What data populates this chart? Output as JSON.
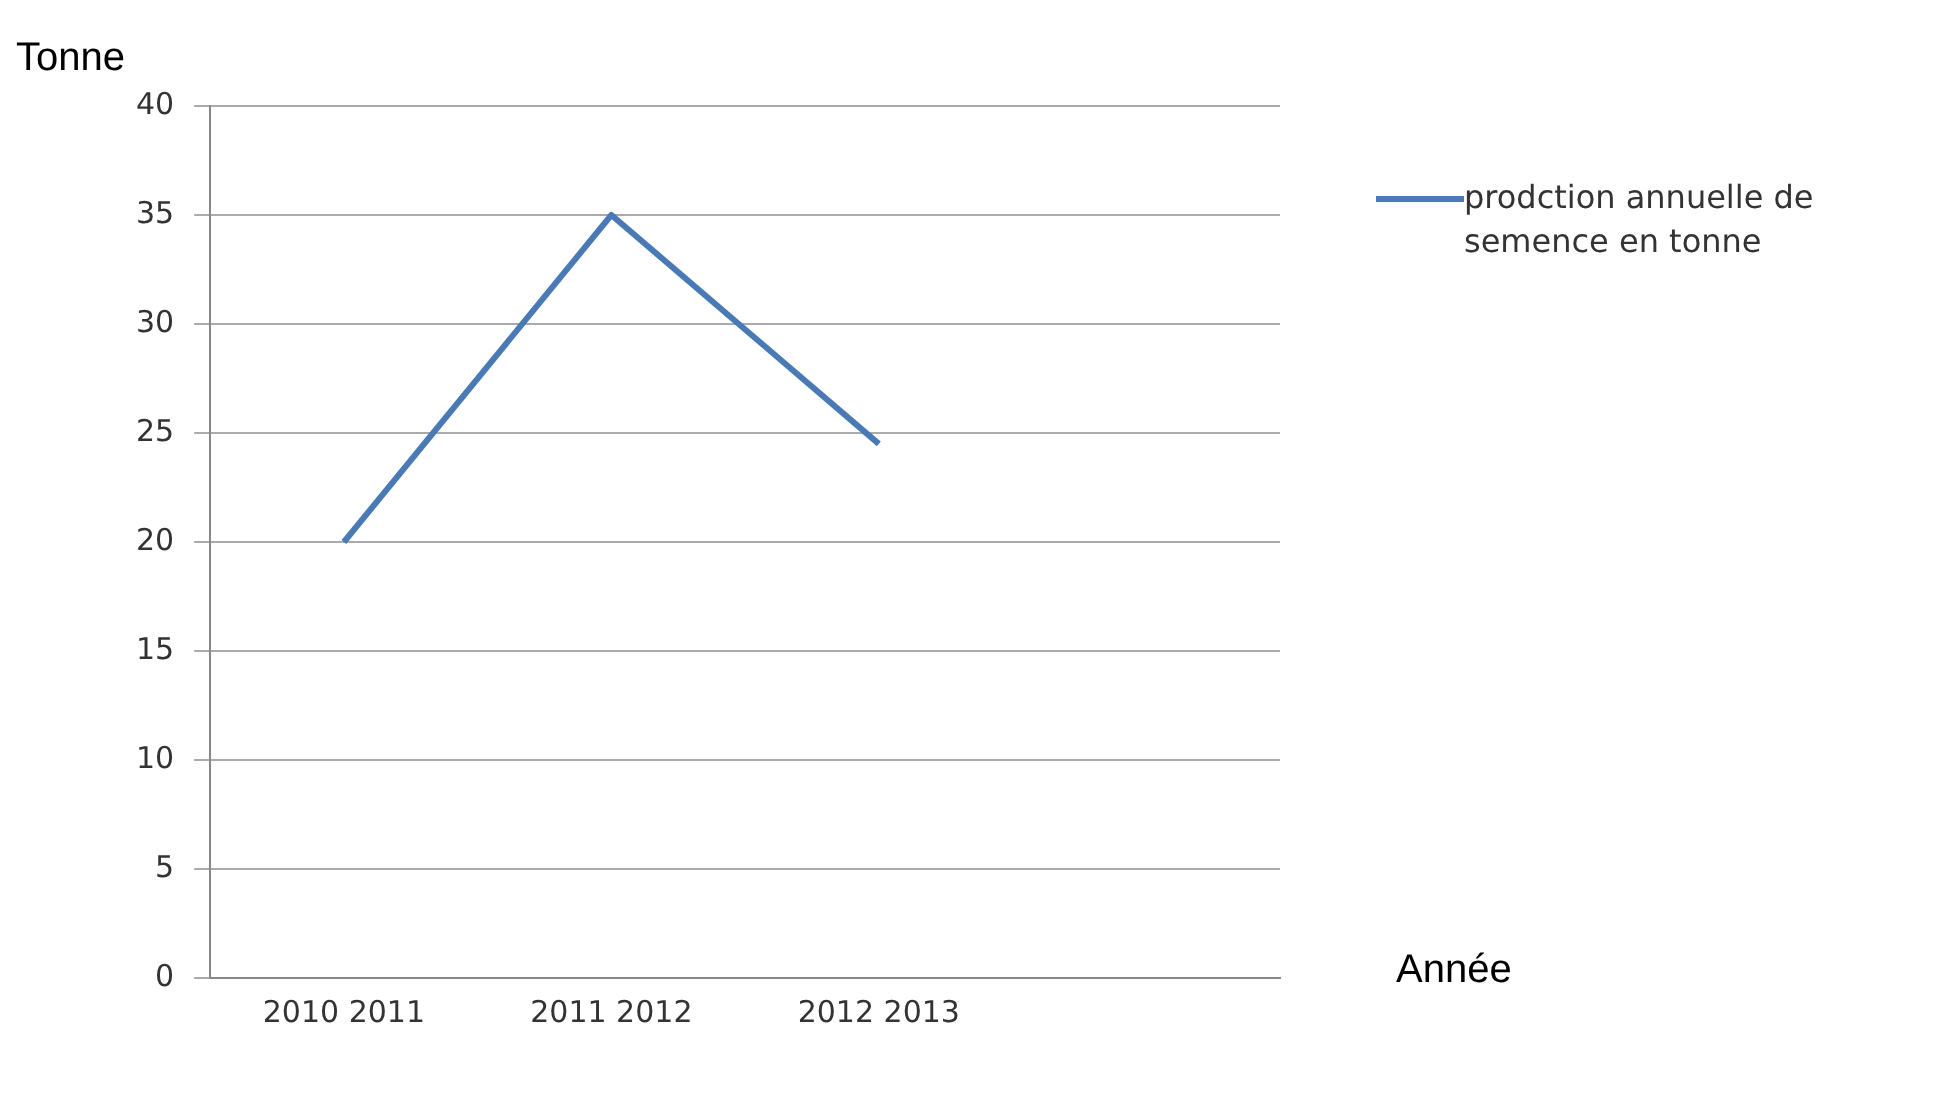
{
  "chart_data": {
    "type": "line",
    "xlabel": "Année",
    "ylabel": "Tonne",
    "categories": [
      "2010 2011",
      "2011 2012",
      "2012 2013",
      null
    ],
    "series": [
      {
        "name": "prodction annuelle de semence en tonne",
        "color": "#4a7ab5",
        "values": [
          20,
          35,
          24.5,
          null
        ]
      }
    ],
    "ylim": [
      0,
      40
    ],
    "yticks": [
      0,
      5,
      10,
      15,
      20,
      25,
      30,
      35,
      40
    ],
    "grid": "y",
    "legend": "right",
    "marker": "none",
    "line_style": "solid"
  }
}
